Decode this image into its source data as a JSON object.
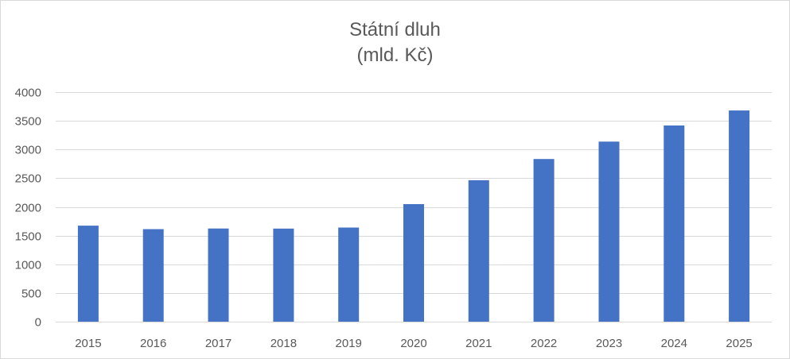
{
  "chart_data": {
    "type": "bar",
    "title": "Státní dluh",
    "subtitle": "(mld. Kč)",
    "categories": [
      "2015",
      "2016",
      "2017",
      "2018",
      "2019",
      "2020",
      "2021",
      "2022",
      "2023",
      "2024",
      "2025"
    ],
    "series": [
      {
        "values": [
          1673,
          1613,
          1624,
          1622,
          1640,
          2049,
          2465,
          2834,
          3138,
          3418,
          3680
        ]
      }
    ],
    "ylim": [
      0,
      4000
    ],
    "yticks": [
      0,
      500,
      1000,
      1500,
      2000,
      2500,
      3000,
      3500,
      4000
    ],
    "grid": true,
    "legend": "none",
    "bar_color": "#4472c4",
    "grid_color": "#d9d9d9",
    "text_color": "#595959"
  }
}
